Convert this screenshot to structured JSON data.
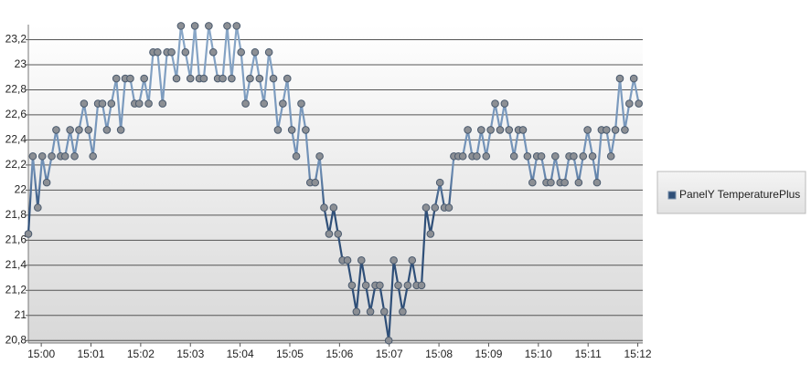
{
  "chart_data": {
    "type": "line",
    "x": [
      -0.26,
      -0.17,
      -0.07,
      0.02,
      0.11,
      0.21,
      0.3,
      0.39,
      0.48,
      0.58,
      0.67,
      0.76,
      0.86,
      0.95,
      1.04,
      1.14,
      1.23,
      1.32,
      1.41,
      1.51,
      1.6,
      1.69,
      1.79,
      1.88,
      1.97,
      2.07,
      2.16,
      2.25,
      2.34,
      2.44,
      2.53,
      2.62,
      2.72,
      2.81,
      2.9,
      3.0,
      3.09,
      3.18,
      3.27,
      3.37,
      3.46,
      3.55,
      3.65,
      3.74,
      3.83,
      3.93,
      4.02,
      4.11,
      4.2,
      4.3,
      4.39,
      4.48,
      4.58,
      4.67,
      4.76,
      4.86,
      4.95,
      5.04,
      5.13,
      5.23,
      5.32,
      5.41,
      5.51,
      5.6,
      5.69,
      5.79,
      5.88,
      5.97,
      6.06,
      6.16,
      6.25,
      6.34,
      6.44,
      6.53,
      6.62,
      6.72,
      6.81,
      6.9,
      6.99,
      7.09,
      7.18,
      7.27,
      7.37,
      7.46,
      7.55,
      7.65,
      7.74,
      7.83,
      7.92,
      8.02,
      8.11,
      8.2,
      8.3,
      8.39,
      8.48,
      8.58,
      8.67,
      8.76,
      8.85,
      8.95,
      9.04,
      9.13,
      9.23,
      9.32,
      9.41,
      9.51,
      9.6,
      9.69,
      9.78,
      9.88,
      9.97,
      10.06,
      10.16,
      10.25,
      10.34,
      10.44,
      10.53,
      10.62,
      10.71,
      10.81,
      10.9,
      10.99,
      11.09,
      11.18,
      11.27,
      11.37,
      11.46,
      11.55,
      11.64,
      11.74,
      11.83,
      11.92,
      12.02
    ],
    "series": [
      {
        "name": "PanelY TemperaturePlus",
        "color": "#2f4f78",
        "values": [
          21.65,
          22.27,
          21.86,
          22.27,
          22.06,
          22.27,
          22.48,
          22.27,
          22.27,
          22.48,
          22.27,
          22.48,
          22.69,
          22.48,
          22.27,
          22.69,
          22.69,
          22.48,
          22.69,
          22.89,
          22.48,
          22.89,
          22.89,
          22.69,
          22.69,
          22.89,
          22.69,
          23.1,
          23.1,
          22.69,
          23.1,
          23.1,
          22.89,
          23.31,
          23.1,
          22.89,
          23.31,
          22.89,
          22.89,
          23.31,
          23.1,
          22.89,
          22.89,
          23.31,
          22.89,
          23.31,
          23.1,
          22.69,
          22.89,
          23.1,
          22.89,
          22.69,
          23.1,
          22.89,
          22.48,
          22.69,
          22.89,
          22.48,
          22.27,
          22.69,
          22.48,
          22.06,
          22.06,
          22.27,
          21.86,
          21.65,
          21.86,
          21.65,
          21.44,
          21.44,
          21.24,
          21.03,
          21.44,
          21.24,
          21.03,
          21.24,
          21.24,
          21.03,
          20.8,
          21.44,
          21.24,
          21.03,
          21.24,
          21.44,
          21.24,
          21.24,
          21.86,
          21.65,
          21.86,
          22.06,
          21.86,
          21.86,
          22.27,
          22.27,
          22.27,
          22.48,
          22.27,
          22.27,
          22.48,
          22.27,
          22.48,
          22.69,
          22.48,
          22.69,
          22.48,
          22.27,
          22.48,
          22.48,
          22.27,
          22.06,
          22.27,
          22.27,
          22.06,
          22.06,
          22.27,
          22.06,
          22.06,
          22.27,
          22.27,
          22.06,
          22.27,
          22.48,
          22.27,
          22.06,
          22.48,
          22.48,
          22.27,
          22.48,
          22.89,
          22.48,
          22.69,
          22.89,
          22.69
        ]
      }
    ],
    "xlim": [
      -0.26,
      12.1
    ],
    "xticks": [
      {
        "value": 0,
        "label": "15:00"
      },
      {
        "value": 1,
        "label": "15:01"
      },
      {
        "value": 2,
        "label": "15:02"
      },
      {
        "value": 3,
        "label": "15:03"
      },
      {
        "value": 4,
        "label": "15:04"
      },
      {
        "value": 5,
        "label": "15:05"
      },
      {
        "value": 6,
        "label": "15:06"
      },
      {
        "value": 7,
        "label": "15:07"
      },
      {
        "value": 8,
        "label": "15:08"
      },
      {
        "value": 9,
        "label": "15:09"
      },
      {
        "value": 10,
        "label": "15:10"
      },
      {
        "value": 11,
        "label": "15:11"
      },
      {
        "value": 12,
        "label": "15:12"
      }
    ],
    "ylim": [
      20.78,
      23.32
    ],
    "yticks": [
      {
        "value": 20.8,
        "label": "20,8"
      },
      21,
      {
        "value": 21.2,
        "label": "21,2"
      },
      {
        "value": 21.4,
        "label": "21,4"
      },
      {
        "value": 21.6,
        "label": "21,6"
      },
      {
        "value": 21.8,
        "label": "21,8"
      },
      22,
      {
        "value": 22.2,
        "label": "22,2"
      },
      {
        "value": 22.4,
        "label": "22,4"
      },
      {
        "value": 22.6,
        "label": "22,6"
      },
      {
        "value": 22.8,
        "label": "22,8"
      },
      23,
      {
        "value": 23.2,
        "label": "23,2"
      }
    ],
    "grid": true,
    "legend": "right"
  }
}
